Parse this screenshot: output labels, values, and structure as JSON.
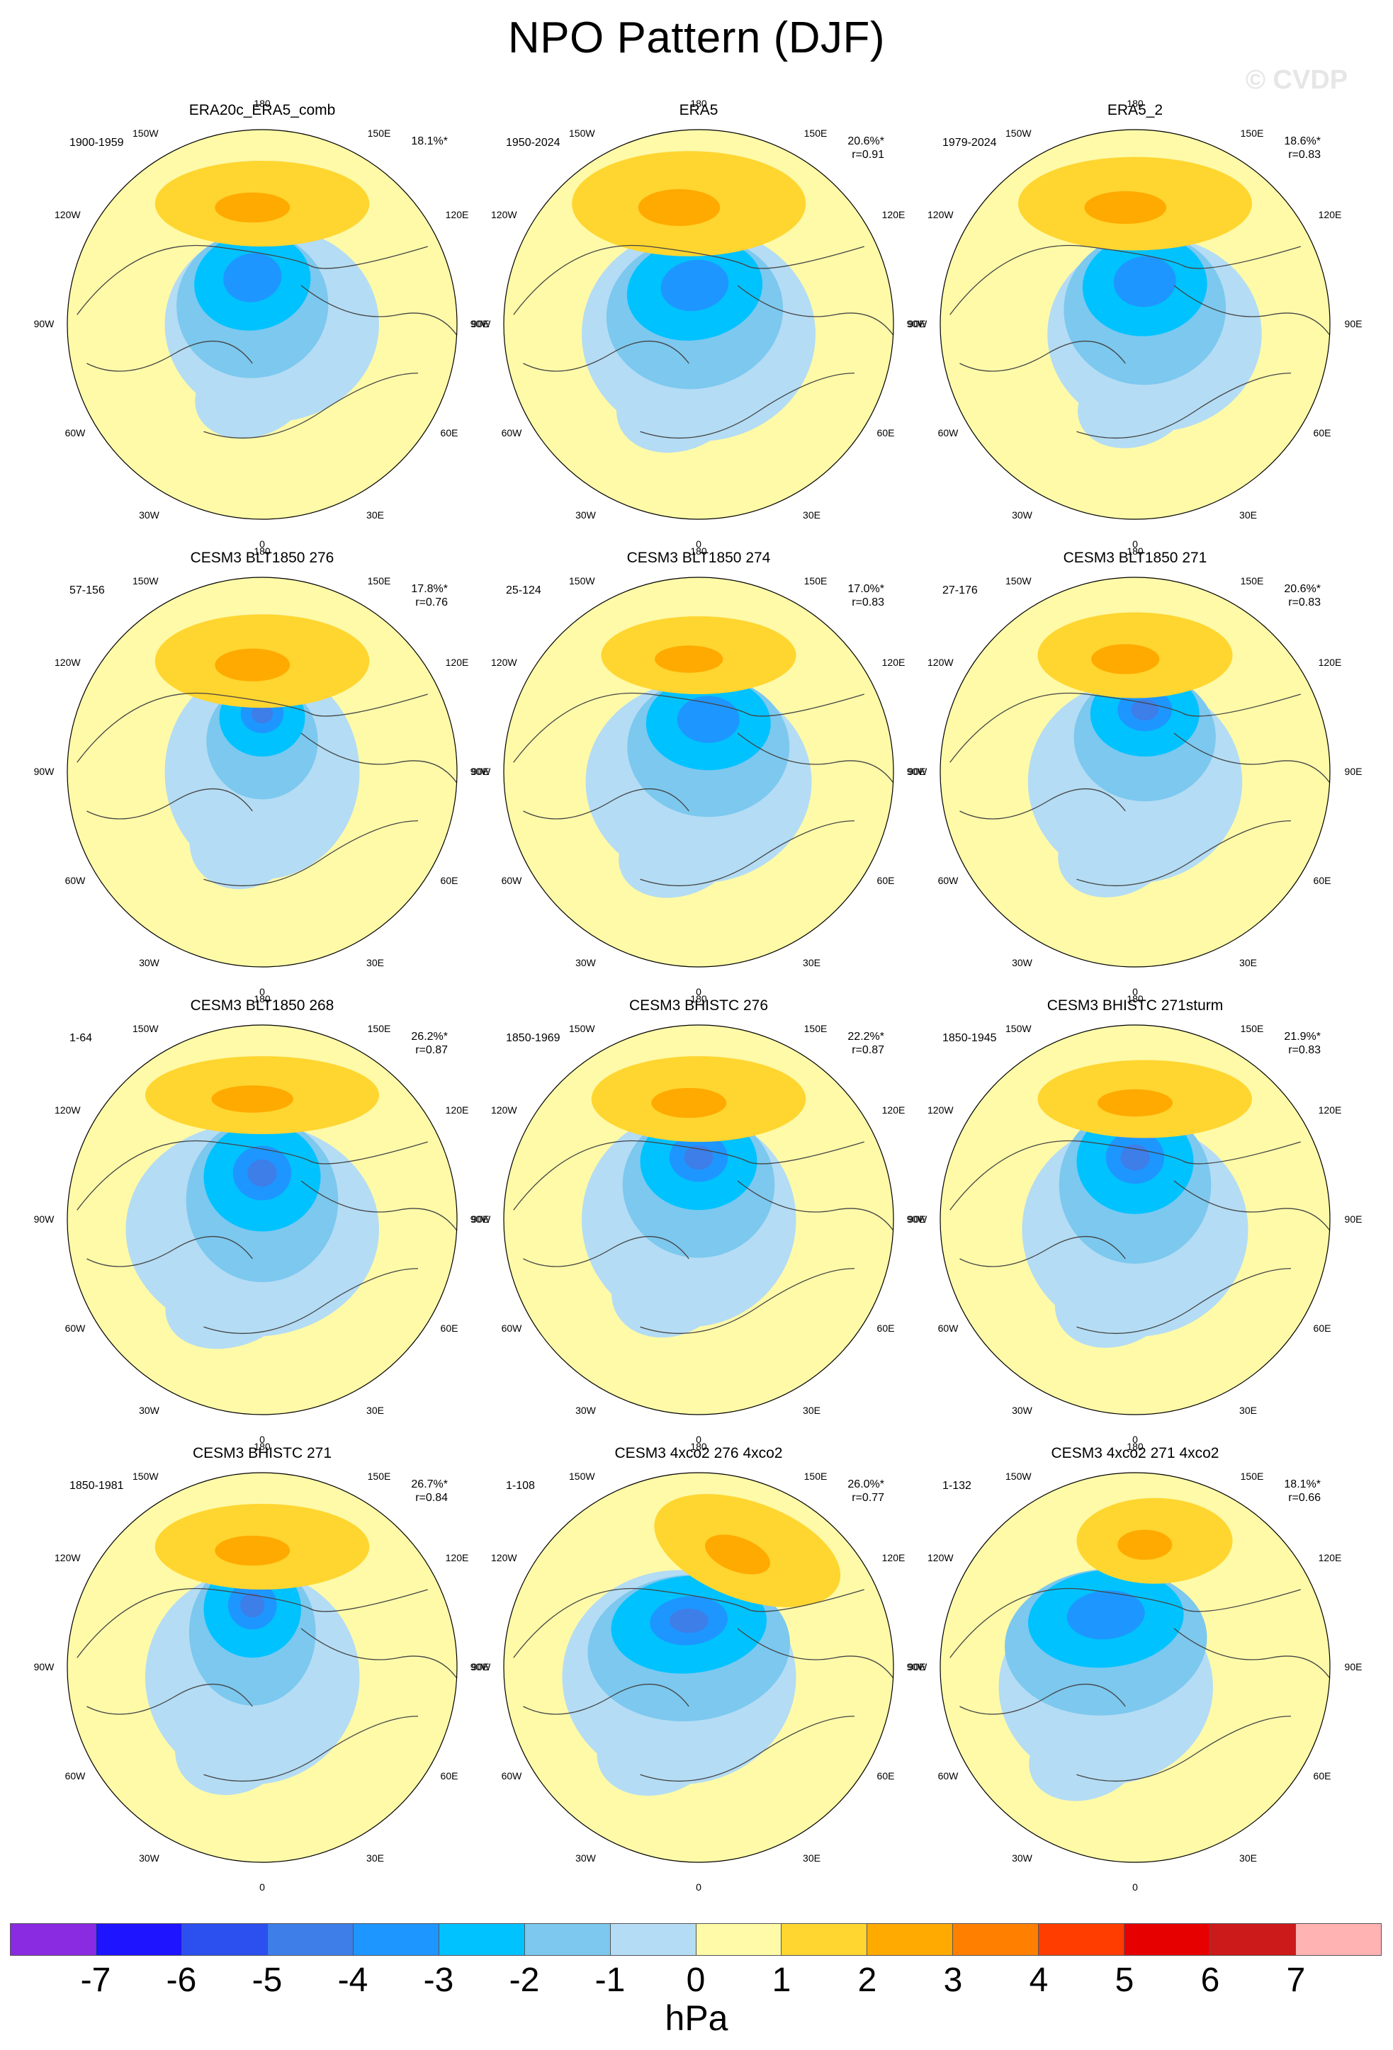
{
  "title": "NPO Pattern (DJF)",
  "watermark": "© CVDP",
  "lon_labels": [
    "180",
    "150E",
    "120E",
    "90E",
    "60E",
    "30E",
    "0",
    "30W",
    "60W",
    "90W",
    "120W",
    "150W"
  ],
  "colors": {
    "neg7": "#8a2be2",
    "neg6": "#1e14ff",
    "neg5": "#2c50f0",
    "neg4": "#3d7ee8",
    "neg3": "#1e96ff",
    "neg2": "#00c2ff",
    "neg1": "#7cc8ef",
    "neg0": "#b4dcf4",
    "pos0": "#fffaa8",
    "pos1": "#ffd530",
    "pos2": "#ffaa00",
    "pos3": "#ff7f00",
    "pos4": "#ff3d00",
    "pos5": "#e60000",
    "pos6": "#cc1a1a",
    "pos7": "#ffb3b3",
    "coast": "#444444",
    "rim": "#000000"
  },
  "panels": [
    {
      "title": "ERA20c_ERA5_comb",
      "years": "1900-1959",
      "pct": "18.1%*",
      "r": ""
    },
    {
      "title": "ERA5",
      "years": "1950-2024",
      "pct": "20.6%*",
      "r": "r=0.91"
    },
    {
      "title": "ERA5_2",
      "years": "1979-2024",
      "pct": "18.6%*",
      "r": "r=0.83"
    },
    {
      "title": "CESM3 BLT1850 276",
      "years": "57-156",
      "pct": "17.8%*",
      "r": "r=0.76"
    },
    {
      "title": "CESM3 BLT1850 274",
      "years": "25-124",
      "pct": "17.0%*",
      "r": "r=0.83"
    },
    {
      "title": "CESM3 BLT1850 271",
      "years": "27-176",
      "pct": "20.6%*",
      "r": "r=0.83"
    },
    {
      "title": "CESM3 BLT1850 268",
      "years": "1-64",
      "pct": "26.2%*",
      "r": "r=0.87"
    },
    {
      "title": "CESM3 BHISTC 276",
      "years": "1850-1969",
      "pct": "22.2%*",
      "r": "r=0.87"
    },
    {
      "title": "CESM3 BHISTC 271sturm",
      "years": "1850-1945",
      "pct": "21.9%*",
      "r": "r=0.83"
    },
    {
      "title": "CESM3 BHISTC 271",
      "years": "1850-1981",
      "pct": "26.7%*",
      "r": "r=0.84"
    },
    {
      "title": "CESM3 4xco2 276 4xco2",
      "years": "1-108",
      "pct": "26.0%*",
      "r": "r=0.77"
    },
    {
      "title": "CESM3 4xco2 271 4xco2",
      "years": "1-132",
      "pct": "18.1%*",
      "r": "r=0.66"
    }
  ],
  "colorbar": {
    "ticks": [
      "-7",
      "-6",
      "-5",
      "-4",
      "-3",
      "-2",
      "-1",
      "0",
      "1",
      "2",
      "3",
      "4",
      "5",
      "6",
      "7"
    ],
    "units": "hPa"
  }
}
